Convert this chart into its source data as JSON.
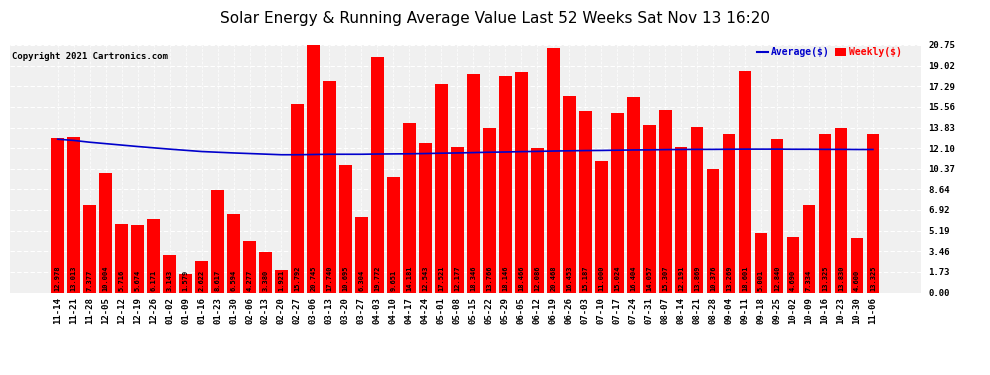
{
  "title": "Solar Energy & Running Average Value Last 52 Weeks Sat Nov 13 16:20",
  "copyright": "Copyright 2021 Cartronics.com",
  "ylabel_right_ticks": [
    0.0,
    1.73,
    3.46,
    5.19,
    6.92,
    8.64,
    10.37,
    12.1,
    13.83,
    15.56,
    17.29,
    19.02,
    20.75
  ],
  "bar_color": "#ff0000",
  "avg_line_color": "#0000cc",
  "background_color": "#ffffff",
  "grid_color": "#cccccc",
  "legend_avg": "Average($)",
  "legend_weekly": "Weekly($)",
  "legend_avg_color": "#0000cc",
  "legend_weekly_color": "#ff0000",
  "categories": [
    "11-14",
    "11-21",
    "11-28",
    "12-05",
    "12-12",
    "12-19",
    "12-26",
    "01-02",
    "01-09",
    "01-16",
    "01-23",
    "01-30",
    "02-06",
    "02-13",
    "02-20",
    "02-27",
    "03-06",
    "03-13",
    "03-20",
    "03-27",
    "04-03",
    "04-10",
    "04-17",
    "04-24",
    "05-01",
    "05-08",
    "05-15",
    "05-22",
    "05-29",
    "06-05",
    "06-12",
    "06-19",
    "06-26",
    "07-03",
    "07-10",
    "07-17",
    "07-24",
    "07-31",
    "08-07",
    "08-14",
    "08-21",
    "08-28",
    "09-04",
    "09-11",
    "09-18",
    "09-25",
    "10-02",
    "10-09",
    "10-16",
    "10-23",
    "10-30",
    "11-06"
  ],
  "weekly_values": [
    12.978,
    13.013,
    7.377,
    10.004,
    5.716,
    5.674,
    6.171,
    3.143,
    1.579,
    2.622,
    8.617,
    6.594,
    4.277,
    3.38,
    1.921,
    15.792,
    20.745,
    17.74,
    10.695,
    6.304,
    19.772,
    9.651,
    14.181,
    12.543,
    17.521,
    12.177,
    18.346,
    13.766,
    18.146,
    18.466,
    12.086,
    20.468,
    16.453,
    15.187,
    11.0,
    15.024,
    16.404,
    14.057,
    15.307,
    12.191,
    13.869,
    10.376,
    13.269,
    18.601,
    5.001,
    12.84,
    4.69,
    7.334,
    13.325,
    13.83,
    4.6,
    13.325
  ],
  "avg_values": [
    12.85,
    12.75,
    12.6,
    12.48,
    12.36,
    12.24,
    12.13,
    12.02,
    11.92,
    11.82,
    11.76,
    11.7,
    11.65,
    11.6,
    11.55,
    11.55,
    11.57,
    11.59,
    11.59,
    11.59,
    11.61,
    11.62,
    11.63,
    11.65,
    11.68,
    11.7,
    11.73,
    11.76,
    11.78,
    11.81,
    11.83,
    11.86,
    11.88,
    11.9,
    11.91,
    11.93,
    11.95,
    11.96,
    11.98,
    11.99,
    12.0,
    12.0,
    12.01,
    12.02,
    12.02,
    12.02,
    12.01,
    12.01,
    12.0,
    12.0,
    11.99,
    11.99
  ],
  "ylim": [
    0.0,
    20.75
  ],
  "title_fontsize": 11,
  "tick_fontsize": 6.5,
  "label_fontsize": 5.0,
  "bar_width": 0.8
}
